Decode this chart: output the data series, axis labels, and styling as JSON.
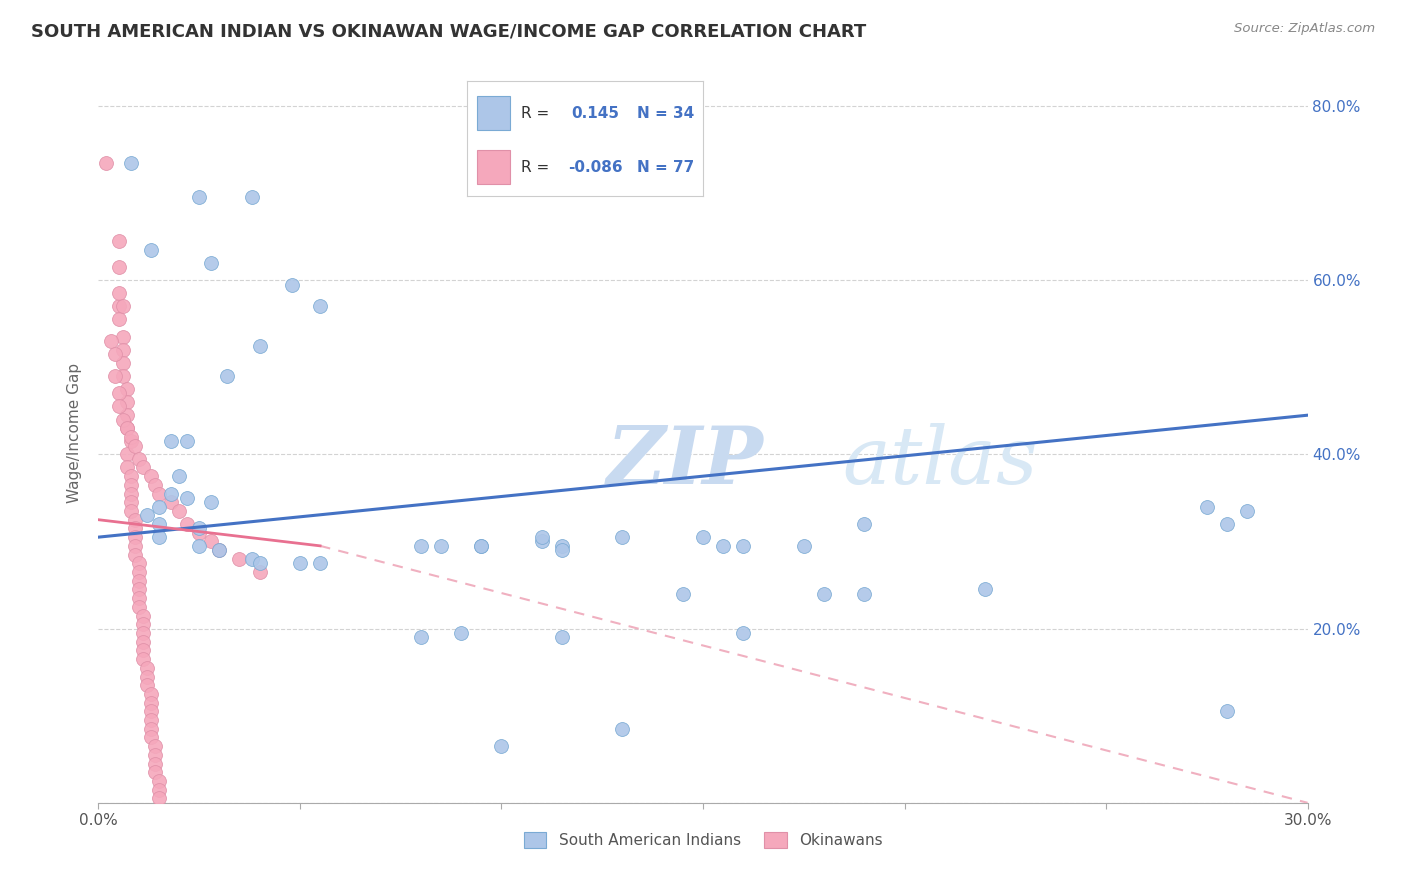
{
  "title": "SOUTH AMERICAN INDIAN VS OKINAWAN WAGE/INCOME GAP CORRELATION CHART",
  "source": "Source: ZipAtlas.com",
  "ylabel": "Wage/Income Gap",
  "xlim": [
    0.0,
    0.3
  ],
  "ylim": [
    0.0,
    0.85
  ],
  "blue_R": "0.145",
  "blue_N": "34",
  "pink_R": "-0.086",
  "pink_N": "77",
  "background_color": "#ffffff",
  "grid_color": "#c8c8c8",
  "blue_color": "#adc6e8",
  "pink_color": "#f5a8bc",
  "blue_line_color": "#4472c4",
  "pink_line_color": "#e87090",
  "pink_dash_color": "#f0b0c0",
  "watermark_color": "#dce8f5",
  "blue_scatter": [
    [
      0.008,
      0.735
    ],
    [
      0.025,
      0.695
    ],
    [
      0.038,
      0.695
    ],
    [
      0.013,
      0.635
    ],
    [
      0.028,
      0.62
    ],
    [
      0.048,
      0.595
    ],
    [
      0.055,
      0.57
    ],
    [
      0.04,
      0.525
    ],
    [
      0.032,
      0.49
    ],
    [
      0.018,
      0.415
    ],
    [
      0.022,
      0.415
    ],
    [
      0.02,
      0.375
    ],
    [
      0.018,
      0.355
    ],
    [
      0.022,
      0.35
    ],
    [
      0.028,
      0.345
    ],
    [
      0.015,
      0.34
    ],
    [
      0.012,
      0.33
    ],
    [
      0.015,
      0.32
    ],
    [
      0.025,
      0.315
    ],
    [
      0.015,
      0.305
    ],
    [
      0.025,
      0.295
    ],
    [
      0.03,
      0.29
    ],
    [
      0.038,
      0.28
    ],
    [
      0.04,
      0.275
    ],
    [
      0.05,
      0.275
    ],
    [
      0.055,
      0.275
    ],
    [
      0.095,
      0.295
    ],
    [
      0.11,
      0.3
    ],
    [
      0.115,
      0.295
    ],
    [
      0.175,
      0.295
    ],
    [
      0.28,
      0.32
    ],
    [
      0.155,
      0.295
    ],
    [
      0.19,
      0.32
    ],
    [
      0.275,
      0.34
    ]
  ],
  "blue_scatter_low": [
    [
      0.08,
      0.295
    ],
    [
      0.085,
      0.295
    ],
    [
      0.095,
      0.295
    ],
    [
      0.11,
      0.305
    ],
    [
      0.115,
      0.29
    ],
    [
      0.13,
      0.305
    ],
    [
      0.15,
      0.305
    ],
    [
      0.145,
      0.24
    ],
    [
      0.16,
      0.295
    ],
    [
      0.18,
      0.24
    ],
    [
      0.19,
      0.24
    ],
    [
      0.22,
      0.245
    ],
    [
      0.09,
      0.195
    ],
    [
      0.16,
      0.195
    ],
    [
      0.115,
      0.19
    ],
    [
      0.08,
      0.19
    ],
    [
      0.13,
      0.085
    ],
    [
      0.1,
      0.065
    ],
    [
      0.28,
      0.105
    ],
    [
      0.285,
      0.335
    ]
  ],
  "pink_scatter": [
    [
      0.002,
      0.735
    ],
    [
      0.005,
      0.645
    ],
    [
      0.005,
      0.615
    ],
    [
      0.005,
      0.57
    ],
    [
      0.005,
      0.555
    ],
    [
      0.006,
      0.535
    ],
    [
      0.006,
      0.52
    ],
    [
      0.006,
      0.505
    ],
    [
      0.006,
      0.49
    ],
    [
      0.007,
      0.475
    ],
    [
      0.007,
      0.46
    ],
    [
      0.007,
      0.445
    ],
    [
      0.007,
      0.43
    ],
    [
      0.008,
      0.415
    ],
    [
      0.007,
      0.4
    ],
    [
      0.007,
      0.385
    ],
    [
      0.008,
      0.375
    ],
    [
      0.008,
      0.365
    ],
    [
      0.008,
      0.355
    ],
    [
      0.008,
      0.345
    ],
    [
      0.008,
      0.335
    ],
    [
      0.009,
      0.325
    ],
    [
      0.009,
      0.315
    ],
    [
      0.009,
      0.305
    ],
    [
      0.009,
      0.295
    ],
    [
      0.009,
      0.285
    ],
    [
      0.01,
      0.275
    ],
    [
      0.01,
      0.265
    ],
    [
      0.01,
      0.255
    ],
    [
      0.01,
      0.245
    ],
    [
      0.01,
      0.235
    ],
    [
      0.01,
      0.225
    ],
    [
      0.011,
      0.215
    ],
    [
      0.011,
      0.205
    ],
    [
      0.011,
      0.195
    ],
    [
      0.011,
      0.185
    ],
    [
      0.011,
      0.175
    ],
    [
      0.011,
      0.165
    ],
    [
      0.012,
      0.155
    ],
    [
      0.012,
      0.145
    ],
    [
      0.012,
      0.135
    ],
    [
      0.013,
      0.125
    ],
    [
      0.013,
      0.115
    ],
    [
      0.013,
      0.105
    ],
    [
      0.013,
      0.095
    ],
    [
      0.013,
      0.085
    ],
    [
      0.013,
      0.075
    ],
    [
      0.014,
      0.065
    ],
    [
      0.014,
      0.055
    ],
    [
      0.014,
      0.045
    ],
    [
      0.014,
      0.035
    ],
    [
      0.015,
      0.025
    ],
    [
      0.015,
      0.015
    ],
    [
      0.015,
      0.005
    ],
    [
      0.003,
      0.53
    ],
    [
      0.004,
      0.515
    ],
    [
      0.004,
      0.49
    ],
    [
      0.005,
      0.47
    ],
    [
      0.005,
      0.455
    ],
    [
      0.006,
      0.44
    ],
    [
      0.007,
      0.43
    ],
    [
      0.008,
      0.42
    ],
    [
      0.009,
      0.41
    ],
    [
      0.01,
      0.395
    ],
    [
      0.011,
      0.385
    ],
    [
      0.013,
      0.375
    ],
    [
      0.014,
      0.365
    ],
    [
      0.015,
      0.355
    ],
    [
      0.018,
      0.345
    ],
    [
      0.02,
      0.335
    ],
    [
      0.022,
      0.32
    ],
    [
      0.025,
      0.31
    ],
    [
      0.028,
      0.3
    ],
    [
      0.03,
      0.29
    ],
    [
      0.035,
      0.28
    ],
    [
      0.04,
      0.265
    ],
    [
      0.005,
      0.585
    ],
    [
      0.006,
      0.57
    ]
  ],
  "blue_line": [
    [
      0.0,
      0.305
    ],
    [
      0.3,
      0.445
    ]
  ],
  "pink_line_solid": [
    [
      0.0,
      0.325
    ],
    [
      0.055,
      0.295
    ]
  ],
  "pink_line_dash": [
    [
      0.055,
      0.295
    ],
    [
      0.3,
      0.0
    ]
  ]
}
